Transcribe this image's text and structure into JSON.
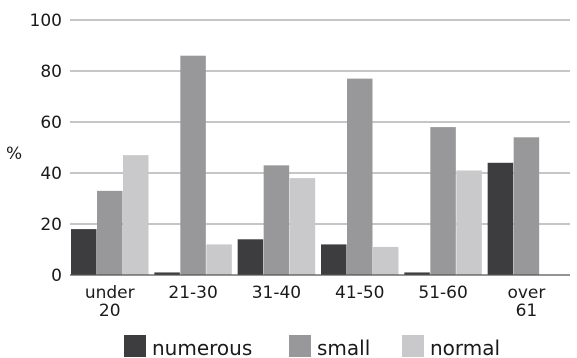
{
  "chart_data": {
    "type": "bar",
    "ylabel": "%",
    "ylim": [
      0,
      100
    ],
    "yticks": [
      0,
      20,
      40,
      60,
      80,
      100
    ],
    "grid": true,
    "legend_position": "bottom",
    "categories": [
      [
        "under",
        "20"
      ],
      [
        "21-30"
      ],
      [
        "31-40"
      ],
      [
        "41-50"
      ],
      [
        "51-60"
      ],
      [
        "over",
        "61"
      ]
    ],
    "series": [
      {
        "name": "numerous",
        "color": "#3d3d3f",
        "values": [
          18,
          1,
          14,
          12,
          1,
          44
        ]
      },
      {
        "name": "small",
        "color": "#98989a",
        "values": [
          33,
          86,
          43,
          77,
          58,
          54
        ]
      },
      {
        "name": "normal",
        "color": "#c9c9cb",
        "values": [
          47,
          12,
          38,
          11,
          41,
          null
        ]
      }
    ]
  }
}
